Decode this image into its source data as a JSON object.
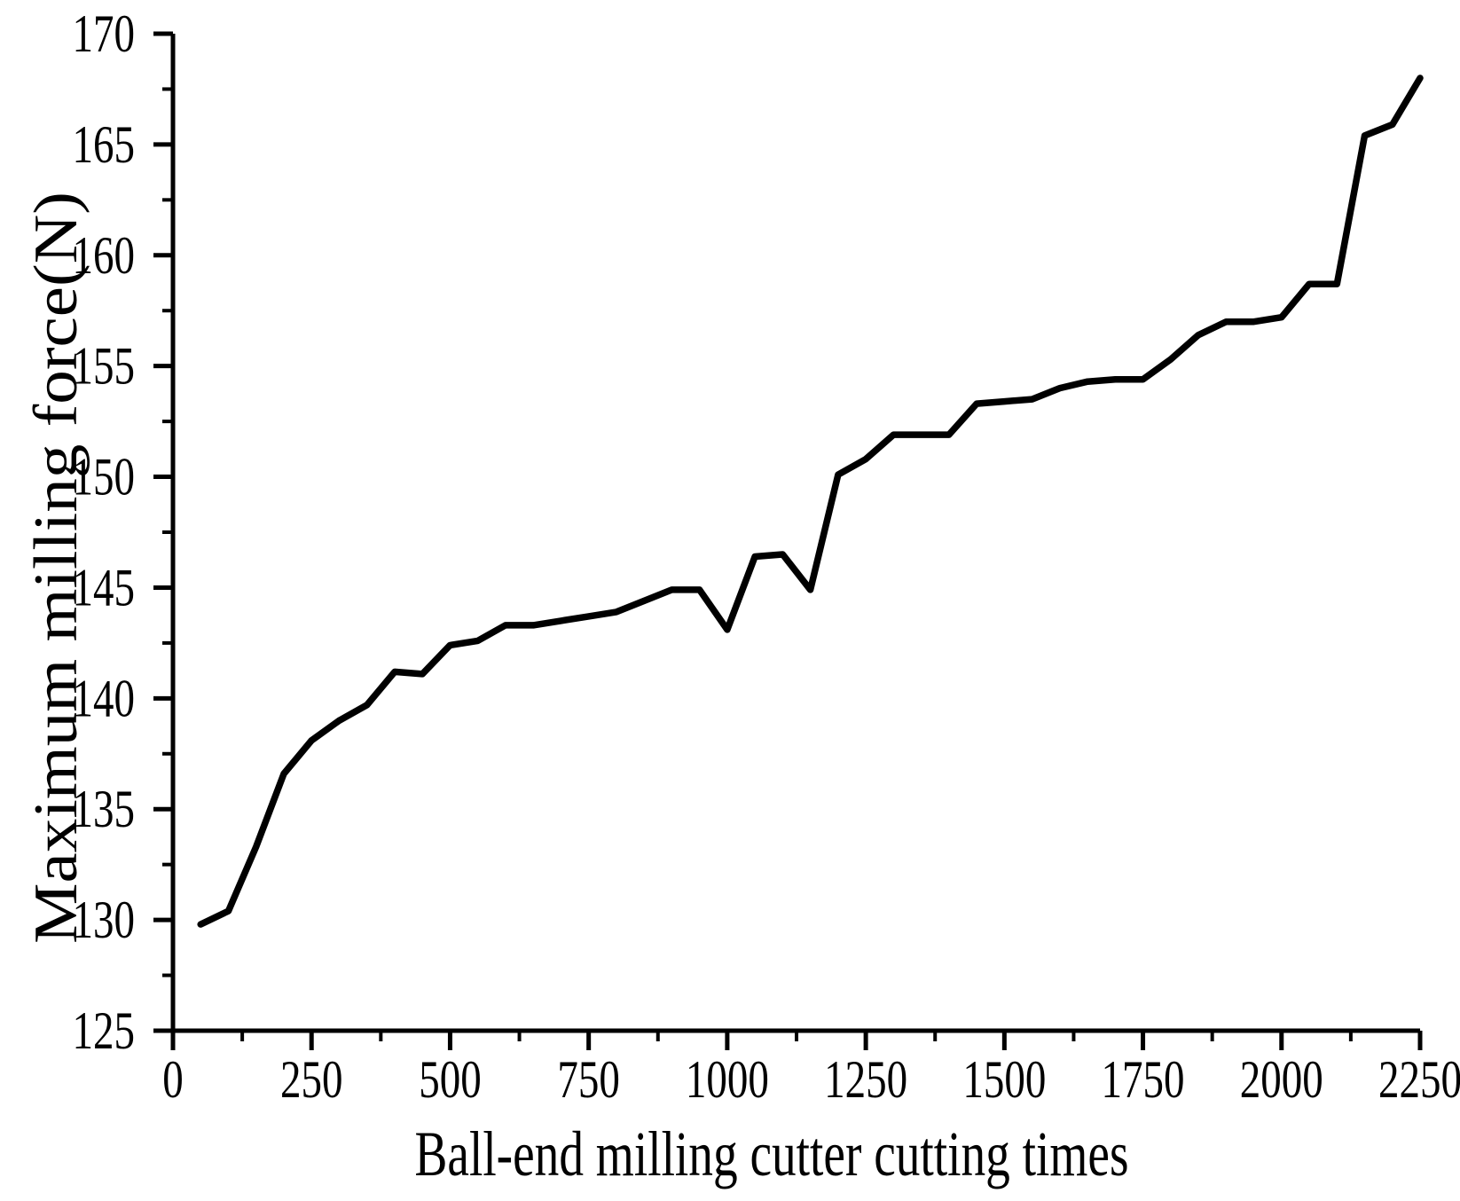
{
  "figure": {
    "background": "#ffffff"
  },
  "chart_data": {
    "type": "line",
    "title": "",
    "xlabel": "Ball-end milling cutter cutting times",
    "ylabel": "Maximum milling force(N)",
    "xlim": [
      0,
      2250
    ],
    "ylim": [
      125,
      170
    ],
    "grid": false,
    "legend": null,
    "x_tick_labels": [
      "0",
      "250",
      "500",
      "750",
      "1000",
      "1250",
      "1500",
      "1750",
      "2000",
      "2250"
    ],
    "x_major_ticks": [
      0,
      250,
      500,
      750,
      1000,
      1250,
      1500,
      1750,
      2000,
      2250
    ],
    "x_minor_step": 125,
    "y_tick_labels": [
      "125",
      "130",
      "135",
      "140",
      "145",
      "150",
      "155",
      "160",
      "165",
      "170"
    ],
    "y_major_ticks": [
      125,
      130,
      135,
      140,
      145,
      150,
      155,
      160,
      165,
      170
    ],
    "y_minor_step": 2.5,
    "series": [
      {
        "name": "Maximum milling force",
        "color": "#000000",
        "x": [
          50,
          100,
          150,
          200,
          250,
          300,
          350,
          400,
          450,
          500,
          550,
          600,
          650,
          700,
          750,
          800,
          850,
          900,
          950,
          1000,
          1050,
          1100,
          1150,
          1200,
          1250,
          1300,
          1350,
          1400,
          1450,
          1500,
          1550,
          1600,
          1650,
          1700,
          1750,
          1800,
          1850,
          1900,
          1950,
          2000,
          2050,
          2100,
          2150,
          2200,
          2250
        ],
        "y": [
          129.8,
          130.4,
          133.3,
          136.6,
          138.1,
          139.0,
          139.7,
          141.2,
          141.1,
          142.4,
          142.6,
          143.3,
          143.3,
          143.5,
          143.7,
          143.9,
          144.4,
          144.9,
          144.9,
          143.1,
          146.4,
          146.5,
          144.9,
          150.1,
          150.8,
          151.9,
          151.9,
          151.9,
          153.3,
          153.4,
          153.5,
          154.0,
          154.3,
          154.4,
          154.4,
          155.3,
          156.4,
          157.0,
          157.0,
          157.2,
          158.7,
          158.7,
          165.4,
          165.9,
          168.0
        ]
      }
    ],
    "style": {
      "line_color": "#000000",
      "axis_color": "#000000",
      "text_color": "#000000",
      "background": "#ffffff"
    }
  }
}
